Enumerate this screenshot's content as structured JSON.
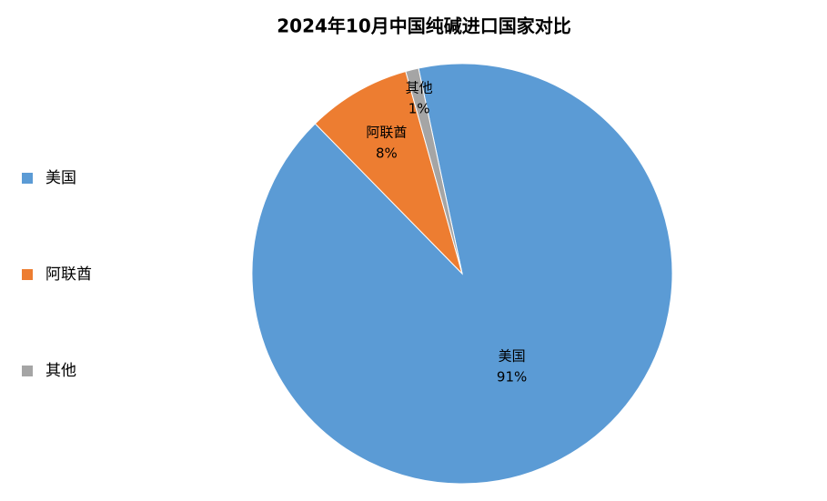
{
  "chart_data": {
    "type": "pie",
    "title": "2024年10月中国纯碱进口国家对比",
    "categories": [
      "美国",
      "阿联酋",
      "其他"
    ],
    "values": [
      91,
      8,
      1
    ],
    "value_labels": [
      "91%",
      "8%",
      "1%"
    ],
    "colors": [
      "#5b9bd5",
      "#ed7d31",
      "#a5a5a5"
    ],
    "legend": "left"
  }
}
